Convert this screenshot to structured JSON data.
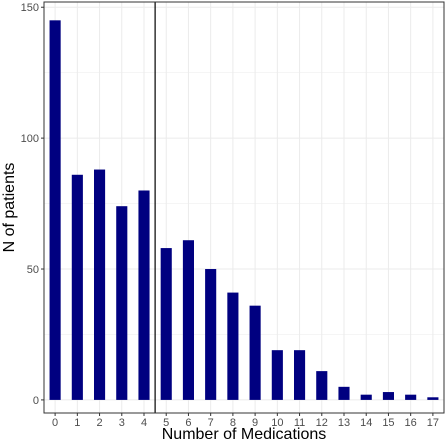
{
  "chart_data": {
    "type": "bar",
    "title": "",
    "xlabel": "Number of Medications",
    "ylabel": "N of patients",
    "categories": [
      "0",
      "1",
      "2",
      "3",
      "4",
      "5",
      "6",
      "7",
      "8",
      "9",
      "10",
      "11",
      "12",
      "13",
      "14",
      "15",
      "16",
      "17"
    ],
    "values": [
      145,
      86,
      88,
      74,
      80,
      58,
      61,
      50,
      41,
      36,
      19,
      19,
      11,
      5,
      2,
      3,
      2,
      1
    ],
    "ylim": [
      -5,
      152
    ],
    "y_ticks": [
      "0",
      "50",
      "100",
      "150"
    ],
    "grid": true,
    "reference_line": {
      "x": 4.5
    },
    "colors": {
      "bar": "#000080",
      "grid": "#ebebeb",
      "border": "#333333",
      "reference_line": "#000000"
    }
  }
}
